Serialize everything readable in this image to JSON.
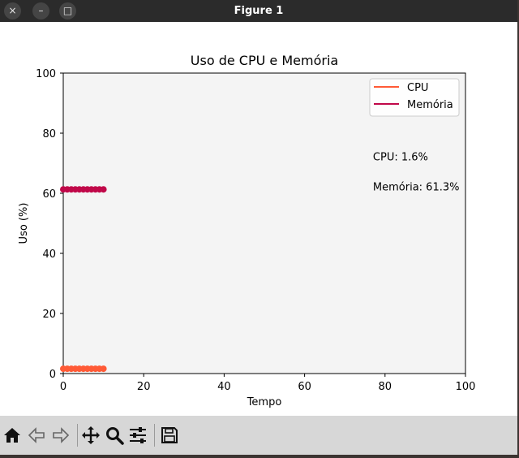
{
  "window": {
    "title": "Figure 1",
    "buttons": {
      "close": "×",
      "minimize": "–",
      "maximize": "□"
    }
  },
  "toolbar": {
    "items": [
      {
        "name": "home-icon"
      },
      {
        "name": "back-icon"
      },
      {
        "name": "forward-icon"
      },
      {
        "name": "pan-icon"
      },
      {
        "name": "zoom-icon"
      },
      {
        "name": "configure-subplots-icon"
      },
      {
        "name": "save-icon"
      }
    ]
  },
  "colors": {
    "cpu": "#ff5a36",
    "memory": "#c00849",
    "plot_background": "#f4f4f4"
  },
  "chart_data": {
    "type": "line",
    "title": "Uso de CPU e Memória",
    "xlabel": "Tempo",
    "ylabel": "Uso (%)",
    "xlim": [
      0,
      100
    ],
    "ylim": [
      0,
      100
    ],
    "x_ticks": [
      "0",
      "20",
      "40",
      "60",
      "80",
      "100"
    ],
    "y_ticks": [
      "0",
      "20",
      "40",
      "60",
      "80",
      "100"
    ],
    "grid": false,
    "legend_position": "top-right",
    "x": [
      0,
      1,
      2,
      3,
      4,
      5,
      6,
      7,
      8,
      9,
      10
    ],
    "series": [
      {
        "name": "CPU",
        "values": [
          1.6,
          1.6,
          1.6,
          1.6,
          1.6,
          1.6,
          1.6,
          1.6,
          1.6,
          1.6,
          1.6
        ]
      },
      {
        "name": "Memória",
        "values": [
          61.3,
          61.3,
          61.3,
          61.3,
          61.3,
          61.3,
          61.3,
          61.3,
          61.3,
          61.3,
          61.3
        ]
      }
    ],
    "annotations": [
      {
        "text": "CPU: 1.6%",
        "x": 77,
        "y": 71
      },
      {
        "text": "Memória: 61.3%",
        "x": 77,
        "y": 61
      }
    ]
  }
}
